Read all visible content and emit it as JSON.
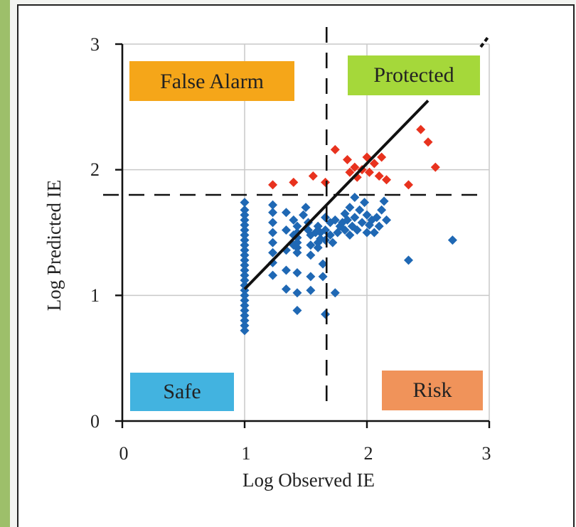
{
  "chart_data": {
    "type": "scatter",
    "xlabel": "Log Observed IE",
    "ylabel": "Log Predicted IE",
    "xlim": [
      0,
      3
    ],
    "ylim": [
      0,
      3
    ],
    "xticks": [
      0,
      1,
      2,
      3
    ],
    "yticks": [
      0,
      1,
      2,
      3
    ],
    "grid": true,
    "threshold_x": 1.67,
    "threshold_y": 1.8,
    "diagonal": {
      "x": [
        1.0,
        2.5
      ],
      "y": [
        1.05,
        2.55
      ]
    },
    "regions": [
      {
        "label": "False Alarm",
        "color": "#f5a619"
      },
      {
        "label": "Protected",
        "color": "#a5d83a"
      },
      {
        "label": "Safe",
        "color": "#42b3e0"
      },
      {
        "label": "Risk",
        "color": "#f0935a"
      }
    ],
    "series": [
      {
        "color": "#1f68b4",
        "points": [
          [
            1.0,
            0.72
          ],
          [
            1.0,
            0.76
          ],
          [
            1.0,
            0.8
          ],
          [
            1.0,
            0.84
          ],
          [
            1.0,
            0.88
          ],
          [
            1.0,
            0.92
          ],
          [
            1.0,
            0.96
          ],
          [
            1.0,
            1.0
          ],
          [
            1.0,
            1.04
          ],
          [
            1.0,
            1.08
          ],
          [
            1.0,
            1.12
          ],
          [
            1.0,
            1.16
          ],
          [
            1.0,
            1.2
          ],
          [
            1.0,
            1.24
          ],
          [
            1.0,
            1.28
          ],
          [
            1.0,
            1.32
          ],
          [
            1.0,
            1.36
          ],
          [
            1.0,
            1.4
          ],
          [
            1.0,
            1.44
          ],
          [
            1.0,
            1.48
          ],
          [
            1.0,
            1.52
          ],
          [
            1.0,
            1.56
          ],
          [
            1.0,
            1.6
          ],
          [
            1.0,
            1.64
          ],
          [
            1.0,
            1.68
          ],
          [
            1.0,
            1.74
          ],
          [
            1.23,
            1.16
          ],
          [
            1.23,
            1.26
          ],
          [
            1.23,
            1.34
          ],
          [
            1.23,
            1.42
          ],
          [
            1.23,
            1.5
          ],
          [
            1.23,
            1.58
          ],
          [
            1.23,
            1.66
          ],
          [
            1.23,
            1.72
          ],
          [
            1.34,
            1.05
          ],
          [
            1.34,
            1.2
          ],
          [
            1.34,
            1.36
          ],
          [
            1.34,
            1.52
          ],
          [
            1.34,
            1.66
          ],
          [
            1.4,
            1.6
          ],
          [
            1.4,
            1.48
          ],
          [
            1.4,
            1.4
          ],
          [
            1.43,
            1.55
          ],
          [
            1.43,
            1.5
          ],
          [
            1.43,
            1.46
          ],
          [
            1.43,
            1.42
          ],
          [
            1.43,
            1.38
          ],
          [
            1.43,
            1.34
          ],
          [
            1.43,
            1.18
          ],
          [
            1.43,
            1.02
          ],
          [
            1.43,
            0.88
          ],
          [
            1.48,
            1.64
          ],
          [
            1.5,
            1.7
          ],
          [
            1.52,
            1.58
          ],
          [
            1.52,
            1.52
          ],
          [
            1.54,
            1.48
          ],
          [
            1.54,
            1.4
          ],
          [
            1.54,
            1.32
          ],
          [
            1.54,
            1.15
          ],
          [
            1.54,
            1.04
          ],
          [
            1.58,
            1.5
          ],
          [
            1.6,
            1.55
          ],
          [
            1.6,
            1.42
          ],
          [
            1.6,
            1.38
          ],
          [
            1.62,
            1.5
          ],
          [
            1.62,
            1.45
          ],
          [
            1.64,
            1.25
          ],
          [
            1.64,
            1.15
          ],
          [
            1.66,
            1.62
          ],
          [
            1.66,
            1.52
          ],
          [
            1.66,
            1.44
          ],
          [
            1.66,
            0.85
          ],
          [
            1.7,
            1.58
          ],
          [
            1.7,
            1.48
          ],
          [
            1.72,
            1.42
          ],
          [
            1.74,
            1.6
          ],
          [
            1.74,
            1.02
          ],
          [
            1.76,
            1.5
          ],
          [
            1.78,
            1.55
          ],
          [
            1.8,
            1.58
          ],
          [
            1.82,
            1.52
          ],
          [
            1.82,
            1.65
          ],
          [
            1.84,
            1.6
          ],
          [
            1.86,
            1.48
          ],
          [
            1.86,
            1.7
          ],
          [
            1.88,
            1.55
          ],
          [
            1.9,
            1.78
          ],
          [
            1.9,
            1.62
          ],
          [
            1.92,
            1.52
          ],
          [
            1.94,
            1.68
          ],
          [
            1.96,
            1.58
          ],
          [
            1.98,
            1.74
          ],
          [
            2.0,
            1.5
          ],
          [
            2.0,
            1.64
          ],
          [
            2.02,
            1.56
          ],
          [
            2.04,
            1.6
          ],
          [
            2.06,
            1.5
          ],
          [
            2.08,
            1.62
          ],
          [
            2.1,
            1.55
          ],
          [
            2.12,
            1.68
          ],
          [
            2.14,
            1.75
          ],
          [
            2.16,
            1.6
          ],
          [
            2.34,
            1.28
          ],
          [
            2.7,
            1.44
          ]
        ]
      },
      {
        "color": "#e8321e",
        "points": [
          [
            1.23,
            1.88
          ],
          [
            1.4,
            1.9
          ],
          [
            1.56,
            1.95
          ],
          [
            1.66,
            1.9
          ],
          [
            1.74,
            2.16
          ],
          [
            1.84,
            2.08
          ],
          [
            1.86,
            1.98
          ],
          [
            1.9,
            2.02
          ],
          [
            1.92,
            1.94
          ],
          [
            1.96,
            2.0
          ],
          [
            2.0,
            2.1
          ],
          [
            2.02,
            1.98
          ],
          [
            2.06,
            2.05
          ],
          [
            2.1,
            1.95
          ],
          [
            2.12,
            2.1
          ],
          [
            2.16,
            1.92
          ],
          [
            2.34,
            1.88
          ],
          [
            2.44,
            2.32
          ],
          [
            2.5,
            2.22
          ],
          [
            2.56,
            2.02
          ]
        ]
      }
    ]
  }
}
